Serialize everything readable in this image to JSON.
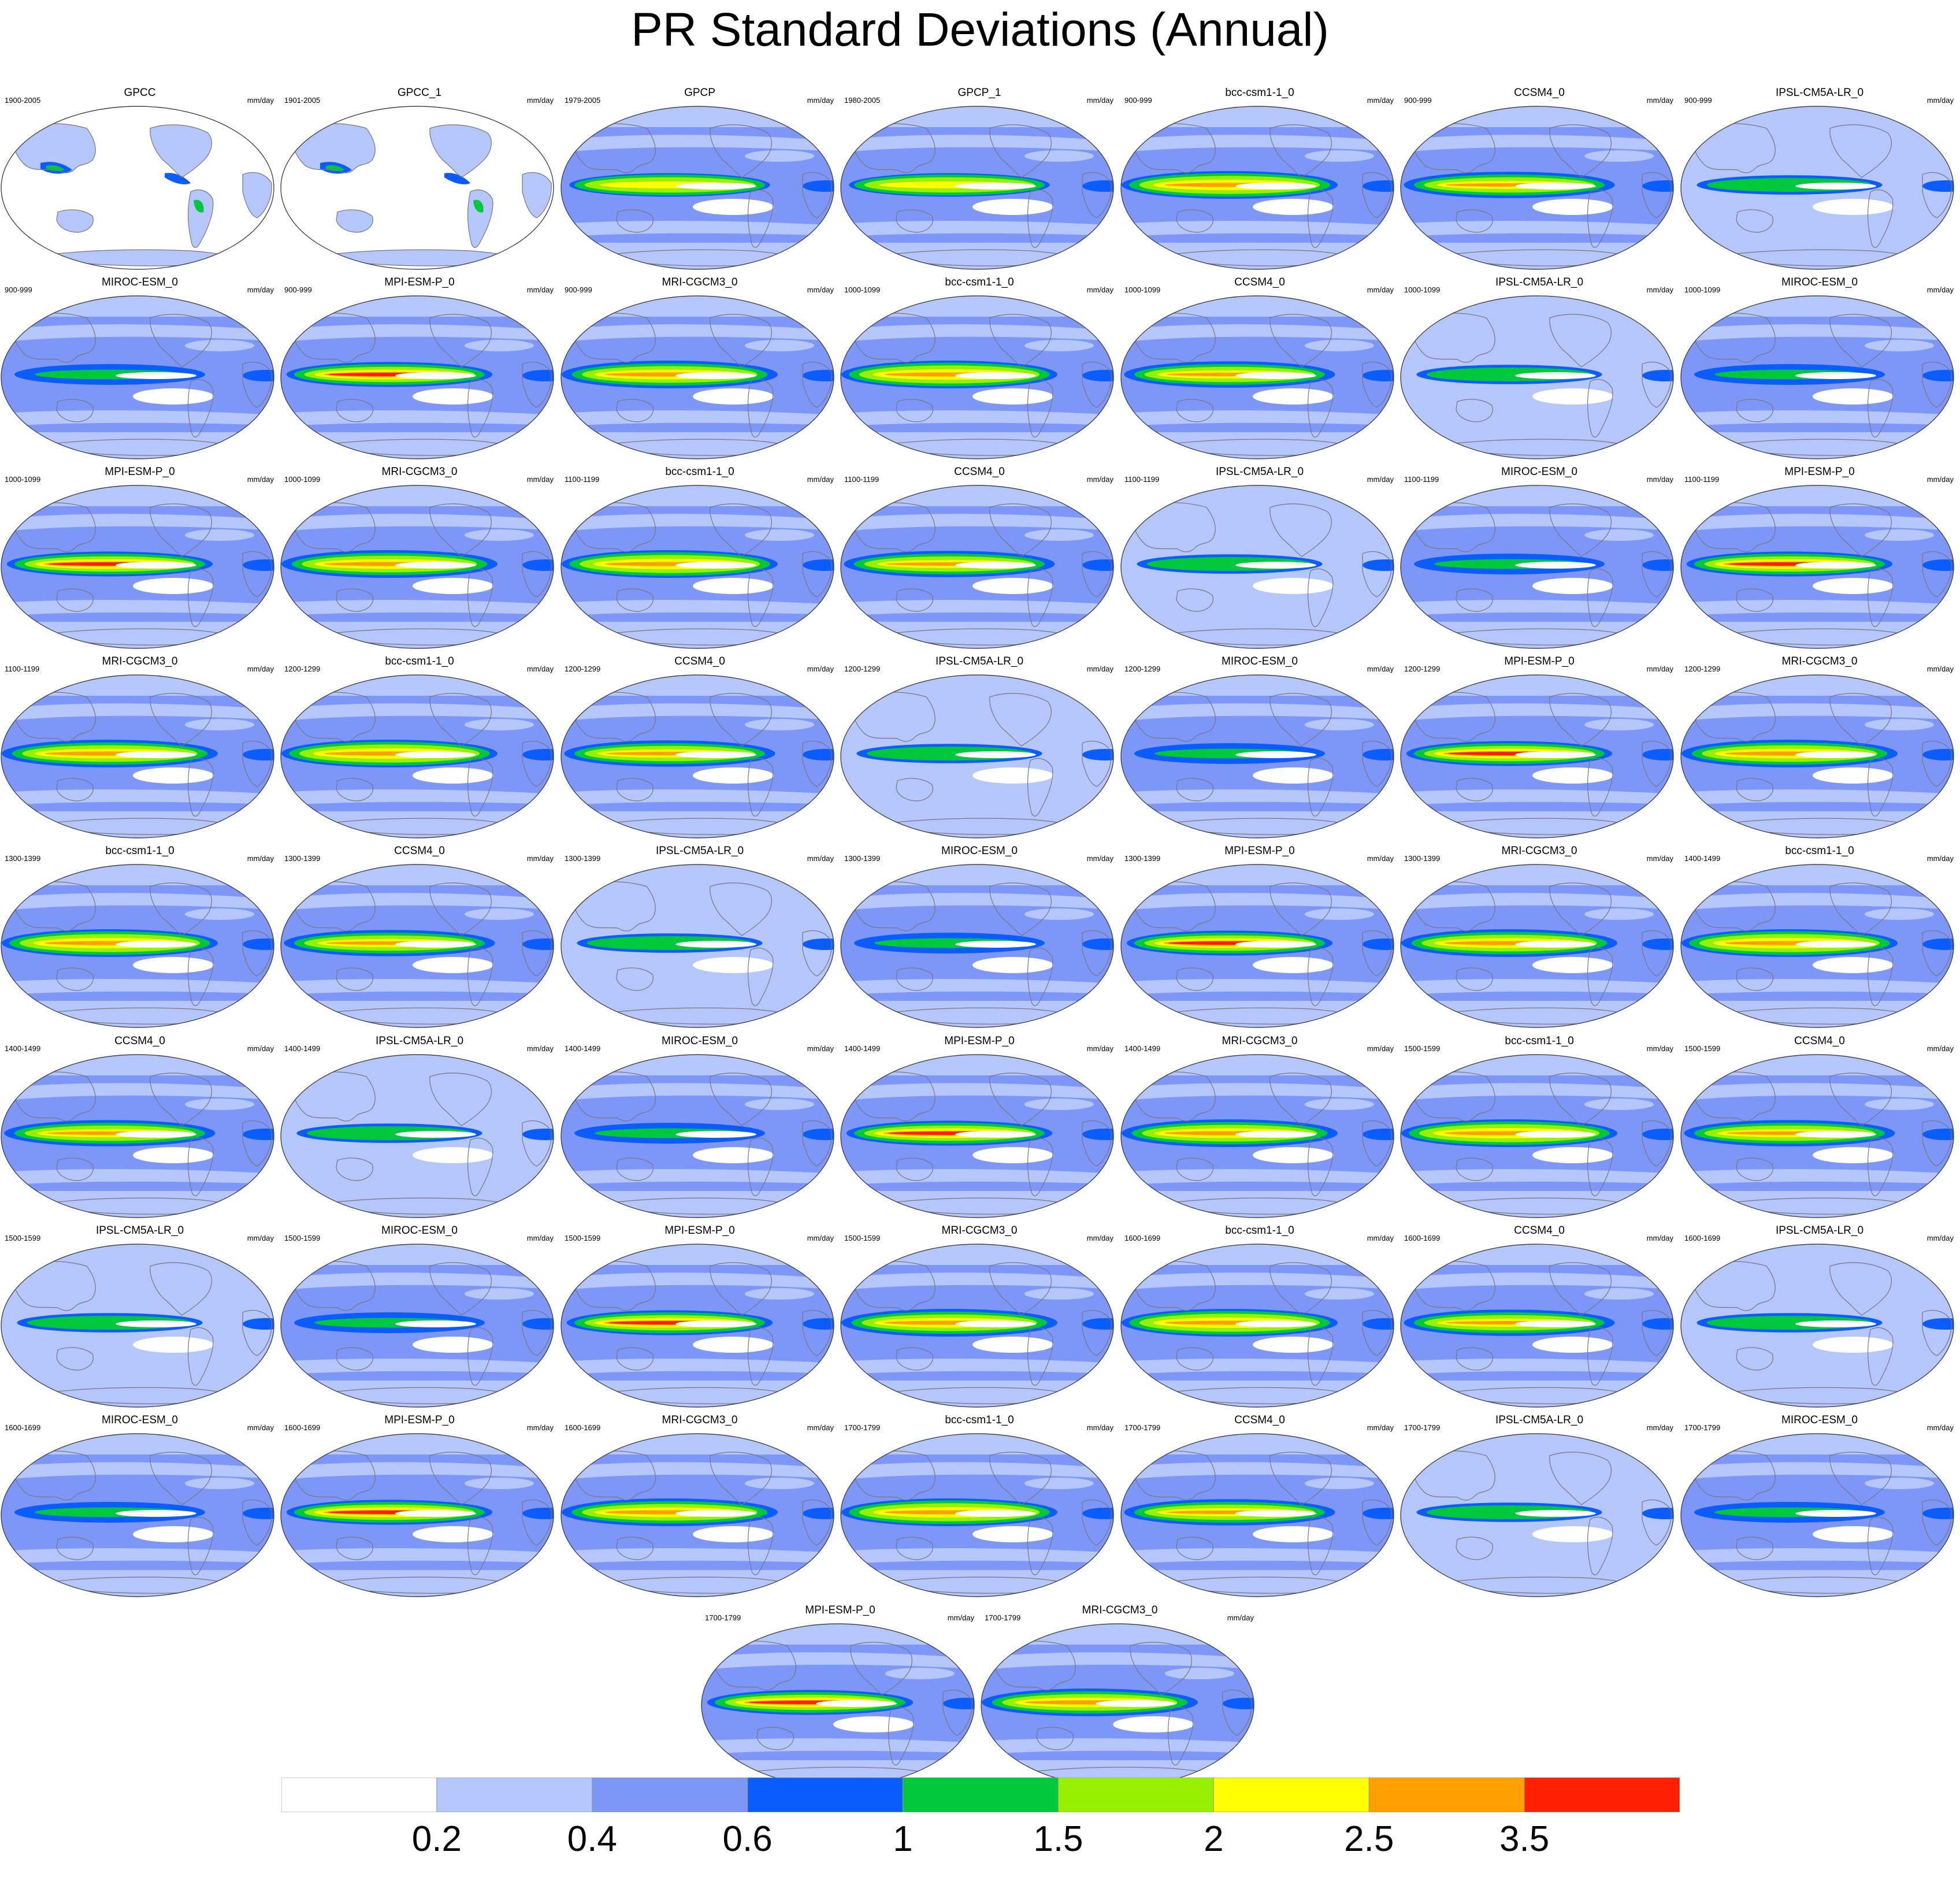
{
  "title": "PR Standard Deviations (Annual)",
  "units": "mm/day",
  "colorbar": {
    "colors": [
      "#ffffff",
      "#b4c6fb",
      "#7d96f8",
      "#0a5cff",
      "#00c83c",
      "#96f000",
      "#ffff00",
      "#ffa000",
      "#ff1e00"
    ],
    "labels": [
      "0.2",
      "0.4",
      "0.6",
      "1",
      "1.5",
      "2",
      "2.5",
      "3.5"
    ]
  },
  "panels": [
    {
      "title": "GPCC",
      "period": "1900-2005",
      "style": "land"
    },
    {
      "title": "GPCC_1",
      "period": "1901-2005",
      "style": "land"
    },
    {
      "title": "GPCP",
      "period": "1979-2005",
      "style": "obs"
    },
    {
      "title": "GPCP_1",
      "period": "1980-2005",
      "style": "obs"
    },
    {
      "title": "bcc-csm1-1_0",
      "period": "900-999",
      "style": "bcc"
    },
    {
      "title": "CCSM4_0",
      "period": "900-999",
      "style": "ccsm"
    },
    {
      "title": "IPSL-CM5A-LR_0",
      "period": "900-999",
      "style": "ipsl"
    },
    {
      "title": "MIROC-ESM_0",
      "period": "900-999",
      "style": "miroc"
    },
    {
      "title": "MPI-ESM-P_0",
      "period": "900-999",
      "style": "mpi"
    },
    {
      "title": "MRI-CGCM3_0",
      "period": "900-999",
      "style": "mri"
    },
    {
      "title": "bcc-csm1-1_0",
      "period": "1000-1099",
      "style": "bcc"
    },
    {
      "title": "CCSM4_0",
      "period": "1000-1099",
      "style": "ccsm"
    },
    {
      "title": "IPSL-CM5A-LR_0",
      "period": "1000-1099",
      "style": "ipsl"
    },
    {
      "title": "MIROC-ESM_0",
      "period": "1000-1099",
      "style": "miroc"
    },
    {
      "title": "MPI-ESM-P_0",
      "period": "1000-1099",
      "style": "mpi"
    },
    {
      "title": "MRI-CGCM3_0",
      "period": "1000-1099",
      "style": "mri"
    },
    {
      "title": "bcc-csm1-1_0",
      "period": "1100-1199",
      "style": "bcc"
    },
    {
      "title": "CCSM4_0",
      "period": "1100-1199",
      "style": "ccsm"
    },
    {
      "title": "IPSL-CM5A-LR_0",
      "period": "1100-1199",
      "style": "ipsl"
    },
    {
      "title": "MIROC-ESM_0",
      "period": "1100-1199",
      "style": "miroc"
    },
    {
      "title": "MPI-ESM-P_0",
      "period": "1100-1199",
      "style": "mpi"
    },
    {
      "title": "MRI-CGCM3_0",
      "period": "1100-1199",
      "style": "mri"
    },
    {
      "title": "bcc-csm1-1_0",
      "period": "1200-1299",
      "style": "bcc"
    },
    {
      "title": "CCSM4_0",
      "period": "1200-1299",
      "style": "ccsm"
    },
    {
      "title": "IPSL-CM5A-LR_0",
      "period": "1200-1299",
      "style": "ipsl"
    },
    {
      "title": "MIROC-ESM_0",
      "period": "1200-1299",
      "style": "miroc"
    },
    {
      "title": "MPI-ESM-P_0",
      "period": "1200-1299",
      "style": "mpi"
    },
    {
      "title": "MRI-CGCM3_0",
      "period": "1200-1299",
      "style": "mri"
    },
    {
      "title": "bcc-csm1-1_0",
      "period": "1300-1399",
      "style": "bcc"
    },
    {
      "title": "CCSM4_0",
      "period": "1300-1399",
      "style": "ccsm"
    },
    {
      "title": "IPSL-CM5A-LR_0",
      "period": "1300-1399",
      "style": "ipsl"
    },
    {
      "title": "MIROC-ESM_0",
      "period": "1300-1399",
      "style": "miroc"
    },
    {
      "title": "MPI-ESM-P_0",
      "period": "1300-1399",
      "style": "mpi"
    },
    {
      "title": "MRI-CGCM3_0",
      "period": "1300-1399",
      "style": "mri"
    },
    {
      "title": "bcc-csm1-1_0",
      "period": "1400-1499",
      "style": "bcc"
    },
    {
      "title": "CCSM4_0",
      "period": "1400-1499",
      "style": "ccsm"
    },
    {
      "title": "IPSL-CM5A-LR_0",
      "period": "1400-1499",
      "style": "ipsl"
    },
    {
      "title": "MIROC-ESM_0",
      "period": "1400-1499",
      "style": "miroc"
    },
    {
      "title": "MPI-ESM-P_0",
      "period": "1400-1499",
      "style": "mpi"
    },
    {
      "title": "MRI-CGCM3_0",
      "period": "1400-1499",
      "style": "mri"
    },
    {
      "title": "bcc-csm1-1_0",
      "period": "1500-1599",
      "style": "bcc"
    },
    {
      "title": "CCSM4_0",
      "period": "1500-1599",
      "style": "ccsm"
    },
    {
      "title": "IPSL-CM5A-LR_0",
      "period": "1500-1599",
      "style": "ipsl"
    },
    {
      "title": "MIROC-ESM_0",
      "period": "1500-1599",
      "style": "miroc"
    },
    {
      "title": "MPI-ESM-P_0",
      "period": "1500-1599",
      "style": "mpi"
    },
    {
      "title": "MRI-CGCM3_0",
      "period": "1500-1599",
      "style": "mri"
    },
    {
      "title": "bcc-csm1-1_0",
      "period": "1600-1699",
      "style": "bcc"
    },
    {
      "title": "CCSM4_0",
      "period": "1600-1699",
      "style": "ccsm"
    },
    {
      "title": "IPSL-CM5A-LR_0",
      "period": "1600-1699",
      "style": "ipsl"
    },
    {
      "title": "MIROC-ESM_0",
      "period": "1600-1699",
      "style": "miroc"
    },
    {
      "title": "MPI-ESM-P_0",
      "period": "1600-1699",
      "style": "mpi"
    },
    {
      "title": "MRI-CGCM3_0",
      "period": "1600-1699",
      "style": "mri"
    },
    {
      "title": "bcc-csm1-1_0",
      "period": "1700-1799",
      "style": "bcc"
    },
    {
      "title": "CCSM4_0",
      "period": "1700-1799",
      "style": "ccsm"
    },
    {
      "title": "IPSL-CM5A-LR_0",
      "period": "1700-1799",
      "style": "ipsl"
    },
    {
      "title": "MIROC-ESM_0",
      "period": "1700-1799",
      "style": "miroc"
    },
    {
      "title": "MPI-ESM-P_0",
      "period": "1700-1799",
      "style": "mpi"
    },
    {
      "title": "MRI-CGCM3_0",
      "period": "1700-1799",
      "style": "mri"
    }
  ]
}
